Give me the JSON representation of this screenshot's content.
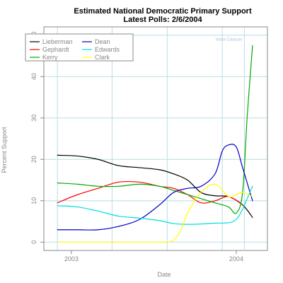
{
  "chart_data": {
    "type": "line",
    "title": "Estimated National Democratic Primary Support",
    "subtitle": "Latest Polls: 2/6/2004",
    "xlabel": "Date",
    "ylabel": "Percent Support",
    "x_ticks": [
      "2003",
      "2004"
    ],
    "y_ticks": [
      0,
      10,
      20,
      30,
      40,
      50
    ],
    "ylim": [
      -2,
      52
    ],
    "xlim": [
      "2002-11-01",
      "2004-03-10"
    ],
    "grid": true,
    "legend_placement": "top-left",
    "annotations": [
      {
        "text": "Iowa Caucus",
        "x": "2004-01-19"
      }
    ],
    "series": [
      {
        "name": "Lieberman",
        "color": "#000000",
        "x": [
          "2002-12-01",
          "2003-01-15",
          "2003-03-01",
          "2003-04-15",
          "2003-06-01",
          "2003-07-15",
          "2003-08-15",
          "2003-09-15",
          "2003-10-15",
          "2003-11-15",
          "2003-12-15",
          "2004-01-15",
          "2004-02-06"
        ],
        "y": [
          21,
          20.8,
          20,
          18.5,
          18,
          17.5,
          16.5,
          15,
          12,
          11.2,
          11,
          9,
          6
        ]
      },
      {
        "name": "Gephardt",
        "color": "#ff0000",
        "x": [
          "2002-12-01",
          "2003-01-15",
          "2003-03-01",
          "2003-04-15",
          "2003-06-01",
          "2003-07-15",
          "2003-08-15",
          "2003-09-15",
          "2003-10-15",
          "2003-11-15",
          "2003-12-15",
          "2004-01-15"
        ],
        "y": [
          9.5,
          11.5,
          13,
          14.5,
          14.5,
          13.5,
          13,
          11.5,
          9.5,
          10,
          11,
          9
        ]
      },
      {
        "name": "Kerry",
        "color": "#00aa00",
        "x": [
          "2002-12-01",
          "2003-01-15",
          "2003-03-01",
          "2003-04-15",
          "2003-06-01",
          "2003-07-15",
          "2003-08-15",
          "2003-09-15",
          "2003-10-15",
          "2003-11-15",
          "2003-12-15",
          "2004-01-01",
          "2004-01-15",
          "2004-01-25",
          "2004-02-06"
        ],
        "y": [
          14.3,
          14,
          13.5,
          13.5,
          14,
          13.5,
          12.5,
          11.5,
          10.5,
          9.5,
          8.5,
          7,
          12,
          30,
          47.5
        ]
      },
      {
        "name": "Dean",
        "color": "#0000cc",
        "x": [
          "2002-12-01",
          "2003-01-15",
          "2003-03-01",
          "2003-04-15",
          "2003-06-01",
          "2003-07-15",
          "2003-08-15",
          "2003-09-15",
          "2003-10-15",
          "2003-11-15",
          "2003-12-01",
          "2003-12-15",
          "2004-01-01",
          "2004-01-15",
          "2004-02-06"
        ],
        "y": [
          3,
          3,
          3,
          3.8,
          5.5,
          9,
          12,
          13,
          13.5,
          16.5,
          22,
          23.5,
          23,
          18,
          10
        ]
      },
      {
        "name": "Edwards",
        "color": "#00dddd",
        "x": [
          "2002-12-01",
          "2003-01-15",
          "2003-03-01",
          "2003-04-15",
          "2003-06-01",
          "2003-07-15",
          "2003-08-15",
          "2003-09-15",
          "2003-10-15",
          "2003-11-15",
          "2003-12-15",
          "2004-01-01",
          "2004-01-15",
          "2004-02-06"
        ],
        "y": [
          8.8,
          8.5,
          7.5,
          6.3,
          5.8,
          5.2,
          4.5,
          4.3,
          4.4,
          4.6,
          4.7,
          5.5,
          8,
          13.5
        ]
      },
      {
        "name": "Clark",
        "color": "#ffff00",
        "x": [
          "2002-12-01",
          "2003-01-15",
          "2003-03-01",
          "2003-04-15",
          "2003-06-01",
          "2003-07-15",
          "2003-08-01",
          "2003-08-15",
          "2003-09-01",
          "2003-09-15",
          "2003-10-15",
          "2003-11-15",
          "2003-12-15",
          "2004-01-01",
          "2004-01-15",
          "2004-02-06"
        ],
        "y": [
          0,
          0,
          0,
          0,
          0,
          0,
          0,
          0.5,
          3,
          7,
          12,
          14,
          11,
          11.5,
          12,
          11
        ]
      }
    ]
  }
}
